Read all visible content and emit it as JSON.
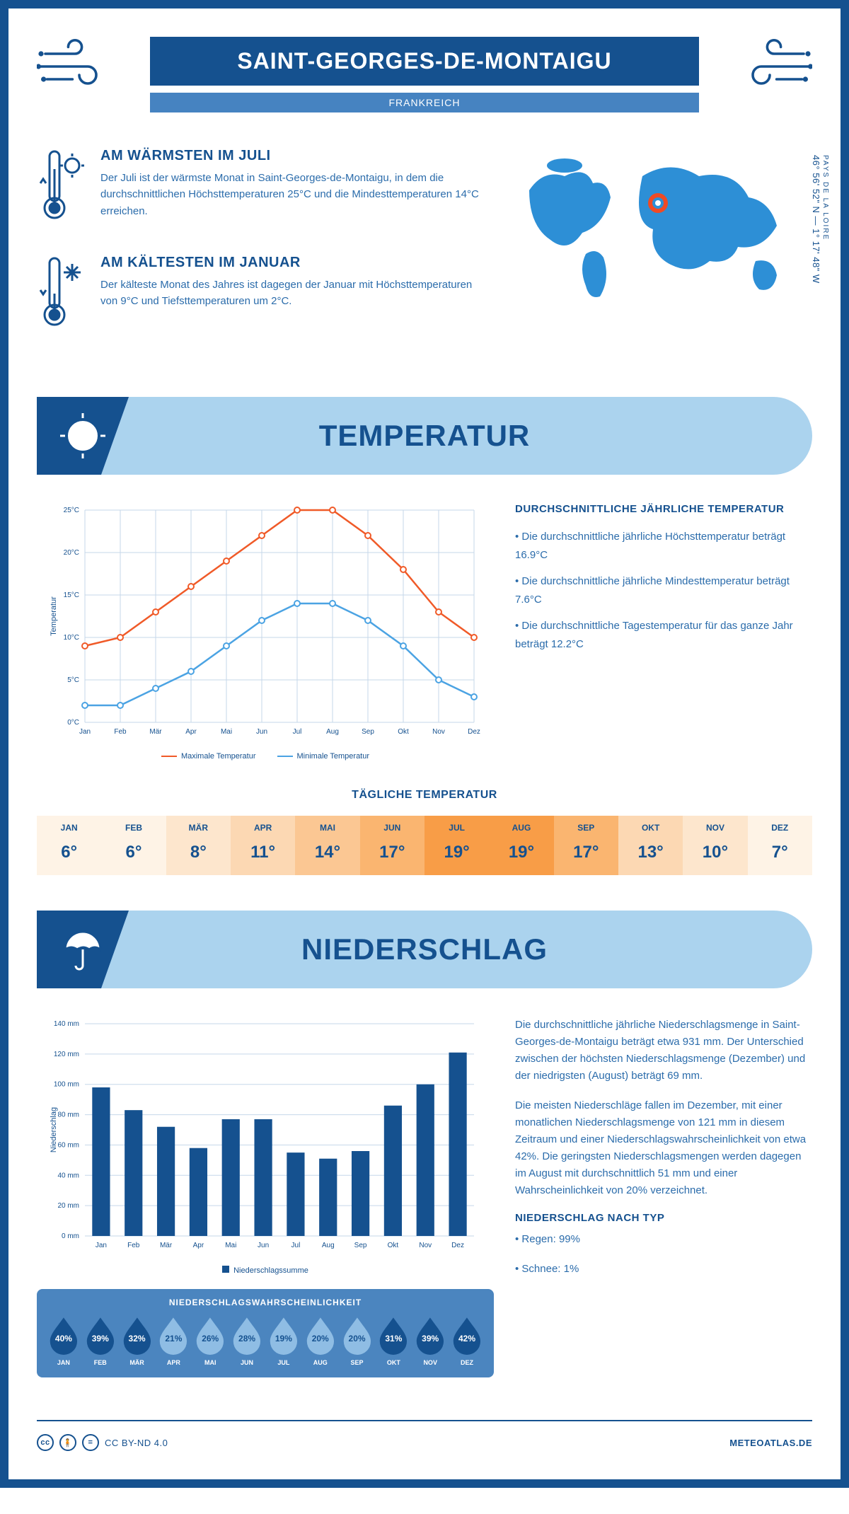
{
  "header": {
    "title": "SAINT-GEORGES-DE-MONTAIGU",
    "country": "FRANKREICH"
  },
  "intro": {
    "warmest": {
      "heading": "AM WÄRMSTEN IM JULI",
      "text": "Der Juli ist der wärmste Monat in Saint-Georges-de-Montaigu, in dem die durchschnittlichen Höchsttemperaturen 25°C und die Mindesttemperaturen 14°C erreichen."
    },
    "coldest": {
      "heading": "AM KÄLTESTEN IM JANUAR",
      "text": "Der kälteste Monat des Jahres ist dagegen der Januar mit Höchsttemperaturen von 9°C und Tiefsttemperaturen um 2°C."
    },
    "region": "PAYS DE LA LOIRE",
    "coords": "46° 56' 52\" N — 1° 17' 48\" W",
    "marker_color": "#f04a24"
  },
  "sections": {
    "temp": "TEMPERATUR",
    "precip": "NIEDERSCHLAG"
  },
  "temp_chart": {
    "type": "line",
    "months": [
      "Jan",
      "Feb",
      "Mär",
      "Apr",
      "Mai",
      "Jun",
      "Jul",
      "Aug",
      "Sep",
      "Okt",
      "Nov",
      "Dez"
    ],
    "max_values": [
      9,
      10,
      13,
      16,
      19,
      22,
      25,
      25,
      22,
      18,
      13,
      10
    ],
    "min_values": [
      2,
      2,
      4,
      6,
      9,
      12,
      14,
      14,
      12,
      9,
      5,
      3
    ],
    "max_color": "#f05a28",
    "min_color": "#4ba3e3",
    "ylim": [
      0,
      25
    ],
    "ytick_step": 5,
    "grid_color": "#c5d7ea",
    "y_axis_label": "Temperatur",
    "legend_max": "Maximale Temperatur",
    "legend_min": "Minimale Temperatur"
  },
  "temp_stats": {
    "heading": "DURCHSCHNITTLICHE JÄHRLICHE TEMPERATUR",
    "b1": "• Die durchschnittliche jährliche Höchsttemperatur beträgt 16.9°C",
    "b2": "• Die durchschnittliche jährliche Mindesttemperatur beträgt 7.6°C",
    "b3": "• Die durchschnittliche Tagestemperatur für das ganze Jahr beträgt 12.2°C"
  },
  "daily": {
    "heading": "TÄGLICHE TEMPERATUR",
    "months": [
      "JAN",
      "FEB",
      "MÄR",
      "APR",
      "MAI",
      "JUN",
      "JUL",
      "AUG",
      "SEP",
      "OKT",
      "NOV",
      "DEZ"
    ],
    "values": [
      "6°",
      "6°",
      "8°",
      "11°",
      "14°",
      "17°",
      "19°",
      "19°",
      "17°",
      "13°",
      "10°",
      "7°"
    ],
    "colors": [
      "#fef3e6",
      "#fef3e6",
      "#fde6cd",
      "#fcd8b3",
      "#fbc793",
      "#fab570",
      "#f89d47",
      "#f89d47",
      "#fab570",
      "#fcd8b3",
      "#fde6cd",
      "#fef3e6"
    ]
  },
  "precip_chart": {
    "type": "bar",
    "months": [
      "Jan",
      "Feb",
      "Mär",
      "Apr",
      "Mai",
      "Jun",
      "Jul",
      "Aug",
      "Sep",
      "Okt",
      "Nov",
      "Dez"
    ],
    "values": [
      98,
      83,
      72,
      58,
      77,
      77,
      55,
      51,
      56,
      86,
      100,
      121
    ],
    "bar_color": "#15518f",
    "ylim": [
      0,
      140
    ],
    "ytick_step": 20,
    "grid_color": "#c5d7ea",
    "y_axis_label": "Niederschlag",
    "legend": "Niederschlagssumme"
  },
  "precip_text": {
    "p1": "Die durchschnittliche jährliche Niederschlagsmenge in Saint-Georges-de-Montaigu beträgt etwa 931 mm. Der Unterschied zwischen der höchsten Niederschlagsmenge (Dezember) und der niedrigsten (August) beträgt 69 mm.",
    "p2": "Die meisten Niederschläge fallen im Dezember, mit einer monatlichen Niederschlagsmenge von 121 mm in diesem Zeitraum und einer Niederschlagswahrscheinlichkeit von etwa 42%. Die geringsten Niederschlagsmengen werden dagegen im August mit durchschnittlich 51 mm und einer Wahrscheinlichkeit von 20% verzeichnet.",
    "type_heading": "NIEDERSCHLAG NACH TYP",
    "type1": "• Regen: 99%",
    "type2": "• Schnee: 1%"
  },
  "prob": {
    "heading": "NIEDERSCHLAGSWAHRSCHEINLICHKEIT",
    "months": [
      "JAN",
      "FEB",
      "MÄR",
      "APR",
      "MAI",
      "JUN",
      "JUL",
      "AUG",
      "SEP",
      "OKT",
      "NOV",
      "DEZ"
    ],
    "values": [
      40,
      39,
      32,
      21,
      26,
      28,
      19,
      20,
      20,
      31,
      39,
      42
    ],
    "dark_color": "#15518f",
    "light_color": "#8fbde4",
    "text_dark": "#ffffff",
    "text_light": "#15518f"
  },
  "footer": {
    "license": "CC BY-ND 4.0",
    "site": "METEOATLAS.DE"
  }
}
